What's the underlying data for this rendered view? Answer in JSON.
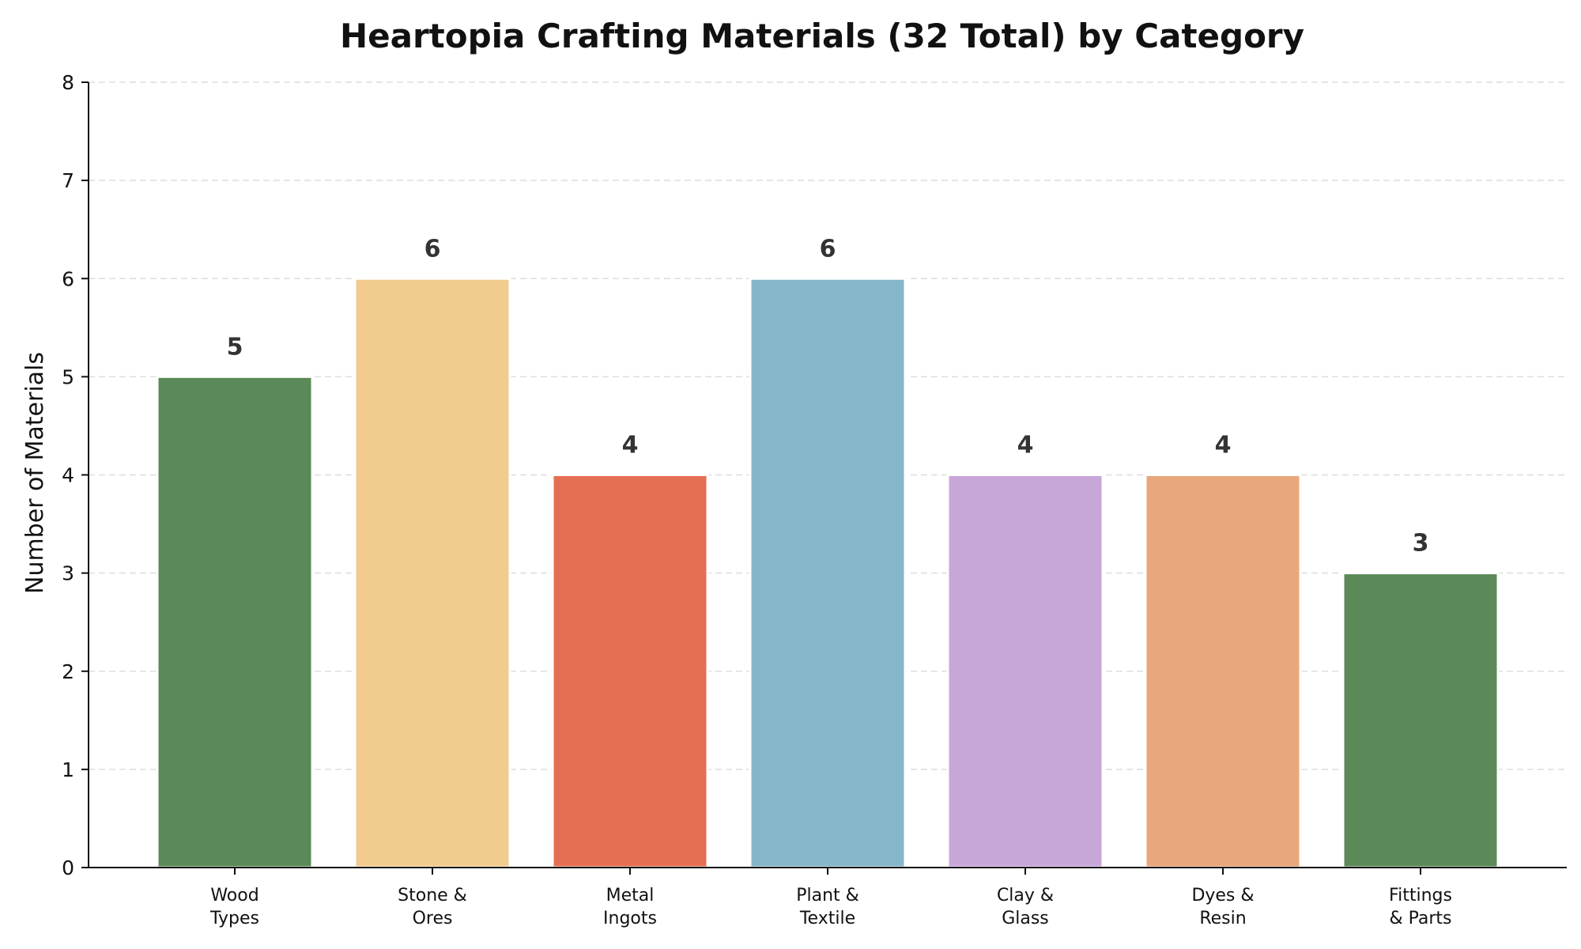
{
  "chart_data": {
    "type": "bar",
    "title": "Heartopia Crafting Materials (32 Total) by Category",
    "xlabel": "",
    "ylabel": "Number of Materials",
    "ylim": [
      0,
      8
    ],
    "yticks": [
      0,
      1,
      2,
      3,
      4,
      5,
      6,
      7,
      8
    ],
    "grid": "y",
    "categories": [
      [
        "Wood",
        "Types"
      ],
      [
        "Stone &",
        "Ores"
      ],
      [
        "Metal",
        "Ingots"
      ],
      [
        "Plant &",
        "Textile"
      ],
      [
        "Clay &",
        "Glass"
      ],
      [
        "Dyes &",
        "Resin"
      ],
      [
        "Fittings",
        "& Parts"
      ]
    ],
    "values": [
      5,
      6,
      4,
      6,
      4,
      4,
      3
    ],
    "colors": [
      "#5b8a58",
      "#f2cc8f",
      "#e56f52",
      "#86b6ca",
      "#c9a6d8",
      "#e8a77c",
      "#5b8a58"
    ]
  }
}
